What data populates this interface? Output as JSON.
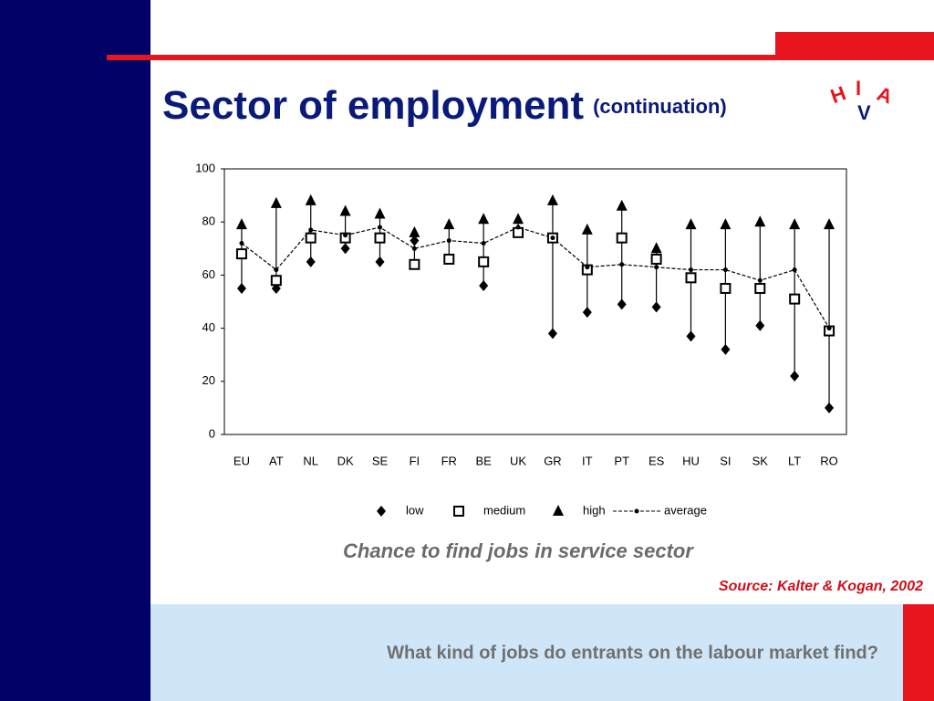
{
  "slide": {
    "title": "Sector of employment",
    "subtitle": "(continuation)",
    "logo": [
      "H",
      "I",
      "V",
      "A"
    ],
    "caption": "Chance to find jobs in service sector",
    "source": "Source:  Kalter & Kogan,  2002",
    "footer": "What kind of jobs do entrants on the labour market find?"
  },
  "chart_data": {
    "type": "range",
    "categories": [
      "EU",
      "AT",
      "NL",
      "DK",
      "SE",
      "FI",
      "FR",
      "BE",
      "UK",
      "GR",
      "IT",
      "PT",
      "ES",
      "HU",
      "SI",
      "SK",
      "LT",
      "RO"
    ],
    "series": [
      {
        "name": "low",
        "color": "#000000",
        "values": [
          55,
          55,
          65,
          70,
          65,
          73,
          null,
          56,
          null,
          38,
          46,
          49,
          48,
          37,
          32,
          41,
          22,
          10
        ]
      },
      {
        "name": "medium",
        "color": "#000000",
        "values": [
          68,
          58,
          74,
          74,
          74,
          64,
          66,
          65,
          76,
          74,
          62,
          74,
          66,
          59,
          55,
          55,
          51,
          39
        ]
      },
      {
        "name": "high",
        "color": "#000000",
        "values": [
          79,
          87,
          88,
          84,
          83,
          76,
          79,
          81,
          81,
          88,
          77,
          86,
          70,
          79,
          79,
          80,
          79,
          79
        ]
      },
      {
        "name": "average",
        "color": "#000000",
        "values": [
          72,
          62,
          77,
          75,
          78,
          70,
          73,
          72,
          78,
          74,
          63,
          64,
          63,
          62,
          62,
          58,
          62,
          40
        ]
      }
    ],
    "ylim": [
      0,
      100
    ],
    "yticks": [
      0,
      20,
      40,
      60,
      80,
      100
    ],
    "grid": false
  }
}
